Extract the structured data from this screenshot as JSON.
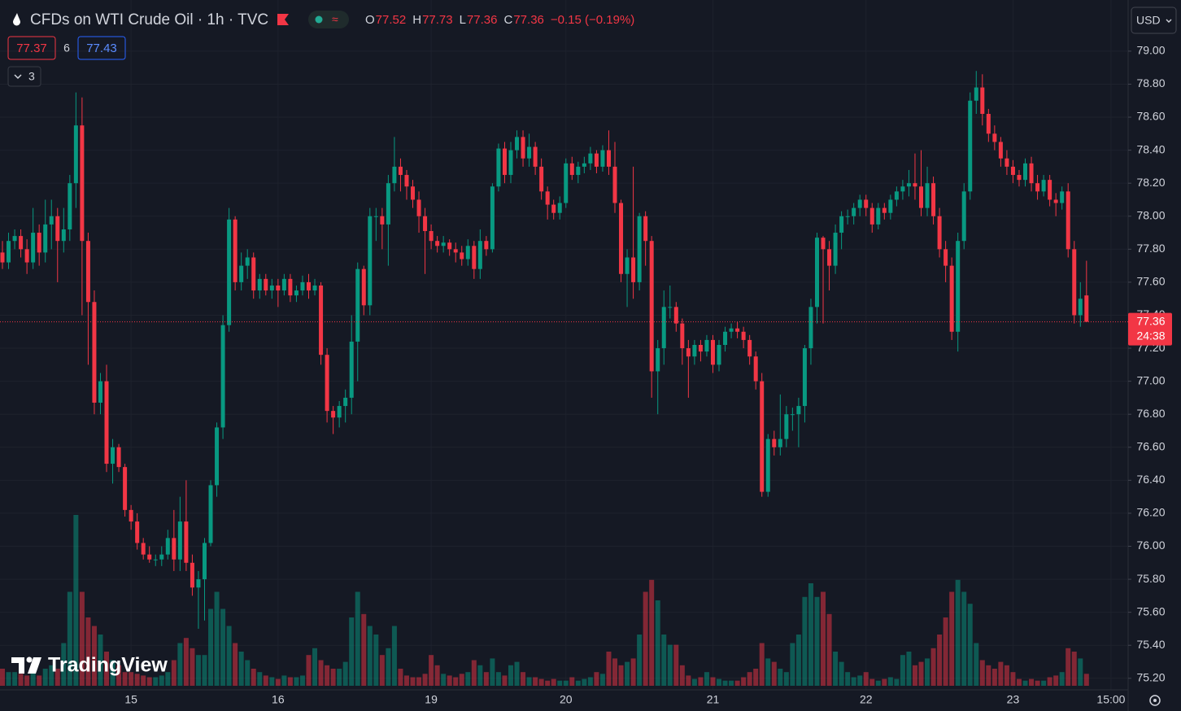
{
  "header": {
    "symbol": "CFDs on WTI Crude Oil · 1h · TVC",
    "ohlc": [
      {
        "label": "O",
        "value": "77.52"
      },
      {
        "label": "H",
        "value": "77.73"
      },
      {
        "label": "L",
        "value": "77.36"
      },
      {
        "label": "C",
        "value": "77.36"
      }
    ],
    "change": "−0.15 (−0.19%)",
    "bid": "77.37",
    "spread": "6",
    "ask": "77.43",
    "indicators": "3",
    "currency": "USD",
    "countdown": "24:38",
    "logo": "TradingView"
  },
  "chart_data": {
    "type": "candlestick",
    "up_color": "#089981",
    "down_color": "#f23645",
    "grid": true,
    "categories": [
      null,
      null,
      null,
      null,
      null,
      null,
      null,
      null,
      null,
      null,
      null,
      null,
      null,
      null,
      null,
      null,
      null,
      null,
      null,
      null,
      null,
      "15",
      null,
      null,
      null,
      null,
      null,
      null,
      null,
      null,
      null,
      null,
      null,
      null,
      null,
      null,
      null,
      null,
      null,
      null,
      null,
      null,
      null,
      null,
      null,
      "16",
      null,
      null,
      null,
      null,
      null,
      null,
      null,
      null,
      null,
      null,
      null,
      null,
      null,
      null,
      null,
      null,
      null,
      null,
      null,
      null,
      null,
      null,
      null,
      null,
      "19",
      null,
      null,
      null,
      null,
      null,
      null,
      null,
      null,
      null,
      null,
      null,
      null,
      null,
      null,
      null,
      null,
      null,
      null,
      null,
      null,
      null,
      "20",
      null,
      null,
      null,
      null,
      null,
      null,
      null,
      null,
      null,
      null,
      null,
      null,
      null,
      null,
      null,
      null,
      null,
      null,
      null,
      null,
      null,
      null,
      null,
      "21",
      null,
      null,
      null,
      null,
      null,
      null,
      null,
      null,
      null,
      null,
      null,
      null,
      null,
      null,
      null,
      null,
      null,
      null,
      null,
      null,
      null,
      null,
      null,
      null,
      "22",
      null,
      null,
      null,
      null,
      null,
      null,
      null,
      null,
      null,
      null,
      null,
      null,
      null,
      null,
      null,
      null,
      null,
      null,
      null,
      null,
      null,
      null,
      null,
      "23",
      null,
      null,
      null,
      null,
      null,
      null,
      null,
      null,
      null,
      null,
      null,
      null,
      null,
      null,
      null,
      "15:00"
    ],
    "open": [
      77.78,
      77.72,
      77.85,
      77.88,
      77.8,
      77.72,
      77.9,
      77.78,
      77.95,
      78.0,
      77.85,
      77.92,
      78.2,
      78.55,
      77.85,
      77.48,
      76.87,
      77.0,
      76.5,
      76.6,
      76.48,
      76.22,
      76.15,
      76.02,
      75.95,
      75.92,
      75.92,
      75.95,
      76.05,
      75.92,
      76.15,
      75.9,
      75.75,
      75.8,
      76.02,
      76.37,
      76.72,
      77.34,
      77.98,
      77.6,
      77.7,
      77.75,
      77.55,
      77.62,
      77.55,
      77.58,
      77.55,
      77.62,
      77.52,
      77.55,
      77.6,
      77.55,
      77.58,
      77.16,
      76.82,
      76.78,
      76.85,
      76.9,
      77.24,
      77.68,
      77.46,
      78.0,
      78.0,
      77.95,
      78.2,
      78.3,
      78.25,
      78.18,
      78.1,
      78.0,
      77.91,
      77.85,
      77.82,
      77.84,
      77.8,
      77.78,
      77.74,
      77.82,
      77.68,
      77.85,
      77.8,
      78.18,
      78.41,
      78.25,
      78.4,
      78.48,
      78.35,
      78.42,
      78.3,
      78.15,
      78.07,
      78.02,
      78.08,
      78.32,
      78.25,
      78.3,
      78.32,
      78.38,
      78.3,
      78.4,
      78.3,
      78.08,
      77.65,
      77.75,
      77.6,
      78.0,
      77.85,
      77.06,
      77.2,
      77.45,
      77.45,
      77.35,
      77.2,
      77.15,
      77.22,
      77.18,
      77.25,
      77.1,
      77.22,
      77.3,
      77.32,
      77.3,
      77.25,
      77.15,
      77.0,
      76.33,
      76.65,
      76.6,
      76.65,
      76.8,
      76.8,
      76.85,
      77.2,
      77.45,
      77.87,
      77.8,
      77.7,
      77.9,
      78.0,
      78.0,
      78.05,
      78.1,
      78.05,
      77.95,
      78.05,
      78.02,
      78.1,
      78.15,
      78.18,
      78.2,
      78.18,
      78.05,
      78.2,
      78.0,
      77.8,
      77.7,
      77.3,
      77.85,
      78.15,
      78.7,
      78.78,
      78.62,
      78.5,
      78.45,
      78.35,
      78.3,
      78.25,
      78.22,
      78.32,
      78.2,
      78.15,
      78.22,
      78.1,
      78.08,
      78.15,
      77.8,
      77.4,
      77.52,
      null,
      null,
      null,
      null
    ],
    "high": [
      77.85,
      77.9,
      77.92,
      77.92,
      77.86,
      78.05,
      77.95,
      78.1,
      78.1,
      78.05,
      78.05,
      78.25,
      78.75,
      78.72,
      77.9,
      77.55,
      77.05,
      77.1,
      76.65,
      76.62,
      76.5,
      76.25,
      76.2,
      76.05,
      76.0,
      75.95,
      76.0,
      76.1,
      76.22,
      76.3,
      76.4,
      75.95,
      75.85,
      76.05,
      76.4,
      76.75,
      77.4,
      78.05,
      78.0,
      77.78,
      77.8,
      77.78,
      77.65,
      77.65,
      77.62,
      77.62,
      77.65,
      77.65,
      77.58,
      77.64,
      77.65,
      77.62,
      77.6,
      77.2,
      76.85,
      76.88,
      76.95,
      77.4,
      77.72,
      77.7,
      78.05,
      78.05,
      78.05,
      78.25,
      78.48,
      78.35,
      78.28,
      78.22,
      78.15,
      78.05,
      77.95,
      77.88,
      77.88,
      77.86,
      77.84,
      77.82,
      77.86,
      77.85,
      77.92,
      77.88,
      78.2,
      78.44,
      78.45,
      78.45,
      78.52,
      78.52,
      78.5,
      78.45,
      78.35,
      78.18,
      78.1,
      78.12,
      78.35,
      78.36,
      78.33,
      78.36,
      78.42,
      78.4,
      78.43,
      78.52,
      78.45,
      78.1,
      77.8,
      78.3,
      78.02,
      78.03,
      77.88,
      77.25,
      77.55,
      77.58,
      77.48,
      77.38,
      77.25,
      77.25,
      77.25,
      77.28,
      77.28,
      77.25,
      77.33,
      77.35,
      77.36,
      77.33,
      77.28,
      77.18,
      77.05,
      76.68,
      76.7,
      76.92,
      76.85,
      76.84,
      76.9,
      77.22,
      77.5,
      77.9,
      77.88,
      77.85,
      77.95,
      78.03,
      78.04,
      78.08,
      78.13,
      78.13,
      78.08,
      78.08,
      78.08,
      78.13,
      78.18,
      78.22,
      78.28,
      78.38,
      78.4,
      78.3,
      78.24,
      78.05,
      77.85,
      77.75,
      77.9,
      78.2,
      78.75,
      78.88,
      78.86,
      78.65,
      78.55,
      78.48,
      78.4,
      78.34,
      78.28,
      78.35,
      78.36,
      78.25,
      78.25,
      78.25,
      78.14,
      78.18,
      78.2,
      77.85,
      77.6,
      77.73,
      null,
      null,
      null,
      null
    ],
    "low": [
      77.68,
      77.68,
      77.8,
      77.75,
      77.65,
      77.68,
      77.7,
      77.72,
      77.8,
      77.6,
      77.78,
      77.85,
      78.05,
      77.4,
      77.1,
      76.8,
      76.8,
      76.45,
      76.38,
      76.45,
      76.18,
      76.1,
      75.98,
      75.92,
      75.9,
      75.88,
      75.88,
      75.92,
      75.85,
      75.85,
      75.85,
      75.7,
      75.5,
      75.55,
      76.0,
      76.3,
      76.65,
      77.3,
      77.55,
      77.55,
      77.62,
      77.5,
      77.5,
      77.52,
      77.5,
      77.45,
      77.52,
      77.48,
      77.48,
      77.52,
      77.5,
      77.52,
      77.1,
      76.75,
      76.68,
      76.72,
      76.75,
      76.8,
      77.0,
      77.4,
      77.4,
      77.85,
      77.8,
      77.7,
      78.15,
      78.15,
      78.1,
      78.05,
      77.9,
      77.65,
      77.8,
      77.78,
      77.78,
      77.76,
      77.72,
      77.7,
      77.7,
      77.62,
      77.62,
      77.76,
      77.78,
      78.15,
      78.2,
      78.2,
      78.35,
      78.3,
      78.3,
      78.25,
      78.1,
      77.98,
      77.98,
      77.98,
      78.05,
      78.22,
      78.2,
      78.26,
      78.28,
      78.26,
      78.27,
      78.25,
      78.02,
      77.6,
      77.45,
      77.5,
      77.55,
      77.7,
      76.9,
      76.8,
      77.1,
      77.38,
      77.3,
      77.1,
      76.9,
      77.1,
      77.12,
      77.15,
      77.05,
      77.06,
      77.18,
      77.26,
      77.26,
      77.2,
      77.1,
      76.95,
      76.3,
      76.3,
      76.55,
      76.55,
      76.6,
      76.7,
      76.6,
      76.75,
      77.1,
      77.35,
      77.35,
      77.55,
      77.65,
      77.8,
      77.95,
      77.95,
      78.0,
      78.0,
      77.9,
      77.92,
      77.98,
      77.98,
      78.06,
      78.1,
      78.12,
      78.1,
      78.0,
      78.0,
      77.95,
      77.75,
      77.6,
      77.25,
      77.18,
      77.8,
      78.1,
      78.62,
      78.55,
      78.45,
      78.4,
      78.3,
      78.25,
      78.2,
      78.18,
      78.18,
      78.15,
      78.1,
      78.12,
      78.06,
      78.0,
      78.04,
      77.75,
      77.35,
      77.33,
      77.36,
      null,
      null,
      null,
      null
    ],
    "close": [
      77.72,
      77.85,
      77.88,
      77.8,
      77.72,
      77.9,
      77.78,
      77.95,
      78.0,
      77.85,
      77.92,
      78.2,
      78.55,
      77.85,
      77.48,
      76.87,
      77.0,
      76.5,
      76.6,
      76.48,
      76.22,
      76.15,
      76.02,
      75.95,
      75.92,
      75.92,
      75.95,
      76.05,
      75.92,
      76.15,
      75.9,
      75.75,
      75.8,
      76.02,
      76.37,
      76.72,
      77.34,
      77.98,
      77.6,
      77.7,
      77.75,
      77.55,
      77.62,
      77.55,
      77.58,
      77.55,
      77.62,
      77.52,
      77.55,
      77.6,
      77.55,
      77.58,
      77.16,
      76.82,
      76.78,
      76.85,
      76.9,
      77.24,
      77.68,
      77.46,
      78.0,
      78.0,
      77.95,
      78.2,
      78.3,
      78.25,
      78.18,
      78.1,
      78.0,
      77.91,
      77.85,
      77.82,
      77.84,
      77.8,
      77.78,
      77.74,
      77.82,
      77.68,
      77.85,
      77.8,
      78.18,
      78.41,
      78.25,
      78.4,
      78.48,
      78.35,
      78.42,
      78.3,
      78.15,
      78.07,
      78.02,
      78.08,
      78.32,
      78.25,
      78.3,
      78.32,
      78.38,
      78.3,
      78.4,
      78.3,
      78.08,
      77.65,
      77.75,
      77.6,
      78.0,
      77.85,
      77.06,
      77.2,
      77.45,
      77.45,
      77.35,
      77.2,
      77.15,
      77.22,
      77.18,
      77.25,
      77.1,
      77.22,
      77.3,
      77.32,
      77.3,
      77.25,
      77.15,
      77.0,
      76.33,
      76.65,
      76.6,
      76.65,
      76.8,
      76.8,
      76.85,
      77.2,
      77.45,
      77.87,
      77.8,
      77.7,
      77.9,
      78.0,
      78.0,
      78.05,
      78.1,
      78.05,
      77.95,
      78.05,
      78.02,
      78.1,
      78.15,
      78.18,
      78.2,
      78.18,
      78.05,
      78.2,
      78.0,
      77.8,
      77.7,
      77.3,
      77.85,
      78.15,
      78.7,
      78.78,
      78.62,
      78.5,
      78.45,
      78.35,
      78.3,
      78.25,
      78.22,
      78.32,
      78.2,
      78.15,
      78.22,
      78.1,
      78.08,
      78.15,
      77.8,
      77.4,
      77.5,
      77.36,
      null,
      null,
      null,
      null
    ],
    "volume": [
      10,
      8,
      8,
      7,
      6,
      8,
      6,
      10,
      12,
      10,
      25,
      55,
      100,
      55,
      40,
      35,
      30,
      20,
      15,
      12,
      8,
      8,
      7,
      6,
      5,
      5,
      6,
      8,
      15,
      25,
      28,
      22,
      18,
      18,
      45,
      55,
      45,
      35,
      25,
      20,
      15,
      10,
      8,
      6,
      5,
      4,
      6,
      5,
      5,
      6,
      18,
      22,
      15,
      12,
      10,
      10,
      14,
      40,
      55,
      42,
      35,
      30,
      18,
      22,
      35,
      10,
      6,
      5,
      5,
      7,
      18,
      12,
      7,
      6,
      5,
      7,
      8,
      15,
      12,
      8,
      16,
      8,
      6,
      12,
      14,
      8,
      5,
      5,
      4,
      3,
      4,
      3,
      3,
      5,
      3,
      4,
      5,
      8,
      7,
      20,
      16,
      12,
      14,
      16,
      30,
      55,
      62,
      50,
      30,
      24,
      24,
      12,
      6,
      4,
      5,
      8,
      5,
      4,
      3,
      3,
      3,
      5,
      8,
      10,
      25,
      16,
      14,
      10,
      8,
      25,
      30,
      52,
      60,
      52,
      55,
      42,
      20,
      14,
      8,
      5,
      6,
      8,
      4,
      3,
      4,
      5,
      4,
      18,
      20,
      12,
      14,
      16,
      22,
      30,
      40,
      55,
      62,
      55,
      48,
      25,
      15,
      12,
      10,
      14,
      12,
      8,
      4,
      3,
      4,
      3,
      3,
      5,
      6,
      8,
      22,
      20,
      16,
      7,
      null,
      null,
      null,
      null
    ],
    "ylim": [
      75.13,
      79.31
    ],
    "yticks": [
      {
        "value": 75.2,
        "label": "75.20"
      },
      {
        "value": 75.4,
        "label": "75.40"
      },
      {
        "value": 75.6,
        "label": "75.60"
      },
      {
        "value": 75.8,
        "label": "75.80"
      },
      {
        "value": 76.0,
        "label": "76.00"
      },
      {
        "value": 76.2,
        "label": "76.20"
      },
      {
        "value": 76.4,
        "label": "76.40"
      },
      {
        "value": 76.6,
        "label": "76.60"
      },
      {
        "value": 76.8,
        "label": "76.80"
      },
      {
        "value": 77.0,
        "label": "77.00"
      },
      {
        "value": 77.2,
        "label": "77.20"
      },
      {
        "value": 77.4,
        "label": "77.40"
      },
      {
        "value": 77.6,
        "label": "77.60"
      },
      {
        "value": 77.8,
        "label": "77.80"
      },
      {
        "value": 78.0,
        "label": "78.00"
      },
      {
        "value": 78.2,
        "label": "78.20"
      },
      {
        "value": 78.4,
        "label": "78.40"
      },
      {
        "value": 78.6,
        "label": "78.60"
      },
      {
        "value": 78.8,
        "label": "78.80"
      },
      {
        "value": 79.0,
        "label": "79.00"
      }
    ]
  }
}
